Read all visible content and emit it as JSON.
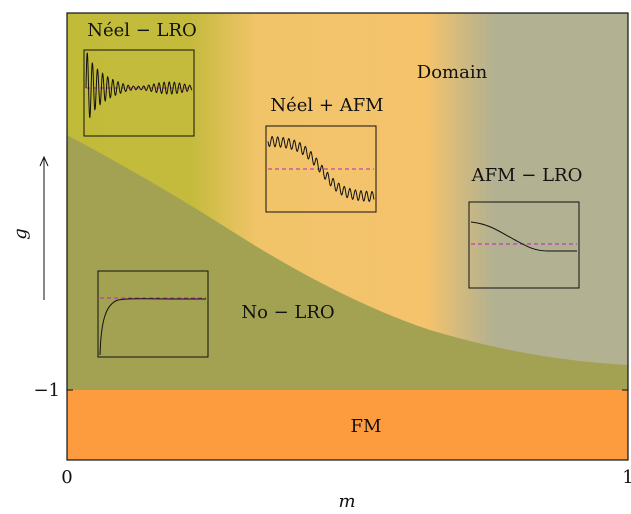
{
  "figure": {
    "x_axis": {
      "label": "m",
      "ticks": [
        "0",
        "1"
      ]
    },
    "y_axis": {
      "label": "g",
      "ticks": [
        "−1"
      ]
    },
    "regions": {
      "neel_lro": "Néel − LRO",
      "neel_afm": "Néel + AFM",
      "afm_lro": "AFM − LRO",
      "no_lro": "No − LRO",
      "fm": "FM",
      "domain": "Domain"
    },
    "colors": {
      "olive_yellow": "#c1bb3a",
      "olive_green": "#a3a253",
      "orange_light": "#f4c36c",
      "gray_green": "#b2b191",
      "fm_orange": "#fd9b3f",
      "dashed_magenta": "#c020c0"
    },
    "insets": [
      "neel-lro-inset",
      "neel-afm-inset",
      "afm-lro-inset",
      "no-lro-inset"
    ]
  }
}
